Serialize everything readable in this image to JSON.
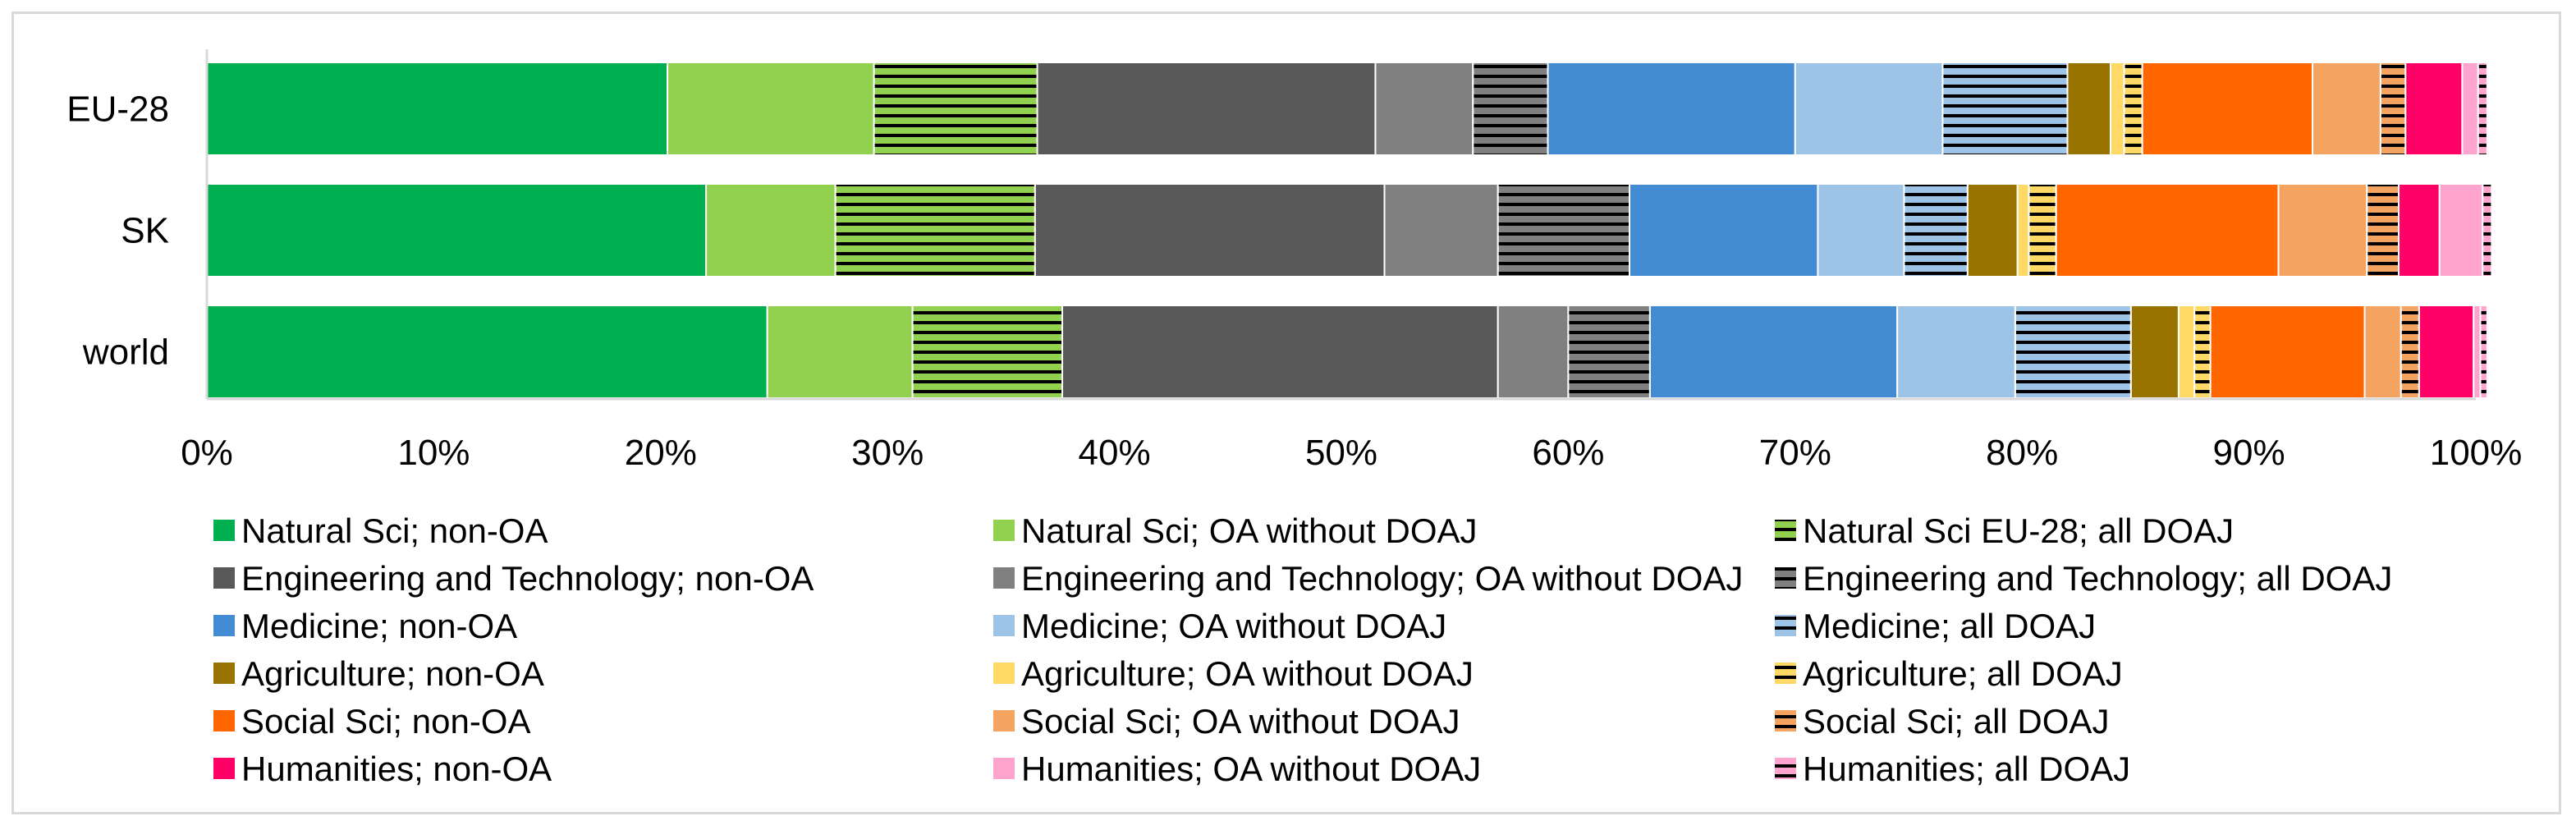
{
  "chart_data": {
    "type": "stacked-bar-horizontal-100",
    "title": "",
    "xlabel": "",
    "ylabel": "",
    "xlim": [
      0,
      100
    ],
    "x_ticks": [
      "0%",
      "10%",
      "20%",
      "30%",
      "40%",
      "50%",
      "60%",
      "70%",
      "80%",
      "90%",
      "100%"
    ],
    "grid": false,
    "legend_position": "bottom",
    "categories": [
      "EU-28",
      "SK",
      "world"
    ],
    "series": [
      {
        "name": "Natural Sci; non-OA",
        "color": "#00b050",
        "pattern": "none",
        "values": [
          20.3,
          22.0,
          24.7
        ]
      },
      {
        "name": "Natural Sci; OA without DOAJ",
        "color": "#92d050",
        "pattern": "none",
        "values": [
          9.1,
          5.7,
          6.4
        ]
      },
      {
        "name": "Natural Sci EU-28; all DOAJ",
        "color": "#92d050",
        "pattern": "hstripes",
        "values": [
          7.2,
          8.8,
          6.6
        ]
      },
      {
        "name": "Engineering and Technology; non-OA",
        "color": "#595959",
        "pattern": "none",
        "values": [
          14.9,
          15.4,
          19.2
        ]
      },
      {
        "name": "Engineering and Technology; OA without DOAJ",
        "color": "#808080",
        "pattern": "none",
        "values": [
          4.3,
          5.0,
          3.1
        ]
      },
      {
        "name": "Engineering and Technology; all DOAJ",
        "color": "#808080",
        "pattern": "hstripes",
        "values": [
          3.3,
          5.8,
          3.6
        ]
      },
      {
        "name": "Medicine; non-OA",
        "color": "#438cd4",
        "pattern": "none",
        "values": [
          10.9,
          8.3,
          10.9
        ]
      },
      {
        "name": "Medicine; OA without DOAJ",
        "color": "#9dc3e6",
        "pattern": "none",
        "values": [
          6.5,
          3.8,
          5.2
        ]
      },
      {
        "name": "Medicine; all DOAJ",
        "color": "#9dc3e6",
        "pattern": "hstripes",
        "values": [
          5.5,
          2.8,
          5.1
        ]
      },
      {
        "name": "Agriculture; non-OA",
        "color": "#997300",
        "pattern": "none",
        "values": [
          1.9,
          2.2,
          2.1
        ]
      },
      {
        "name": "Agriculture; OA without DOAJ",
        "color": "#ffd966",
        "pattern": "none",
        "values": [
          0.6,
          0.5,
          0.7
        ]
      },
      {
        "name": "Agriculture; all DOAJ",
        "color": "#ffd966",
        "pattern": "hstripes",
        "values": [
          0.8,
          1.2,
          0.7
        ]
      },
      {
        "name": "Social Sci; non-OA",
        "color": "#ff6600",
        "pattern": "none",
        "values": [
          7.5,
          9.8,
          6.8
        ]
      },
      {
        "name": "Social Sci; OA without DOAJ",
        "color": "#f4a460",
        "pattern": "none",
        "values": [
          3.0,
          3.9,
          1.6
        ]
      },
      {
        "name": "Social Sci; all DOAJ",
        "color": "#f4a460",
        "pattern": "hstripes",
        "values": [
          1.1,
          1.4,
          0.8
        ]
      },
      {
        "name": "Humanities; non-OA",
        "color": "#ff0066",
        "pattern": "none",
        "values": [
          2.5,
          1.8,
          2.4
        ]
      },
      {
        "name": "Humanities; OA without DOAJ",
        "color": "#ffa3cf",
        "pattern": "none",
        "values": [
          0.7,
          1.9,
          0.3
        ]
      },
      {
        "name": "Humanities; all DOAJ",
        "color": "#ffa3cf",
        "pattern": "hstripes",
        "values": [
          0.4,
          0.4,
          0.3
        ]
      }
    ]
  }
}
